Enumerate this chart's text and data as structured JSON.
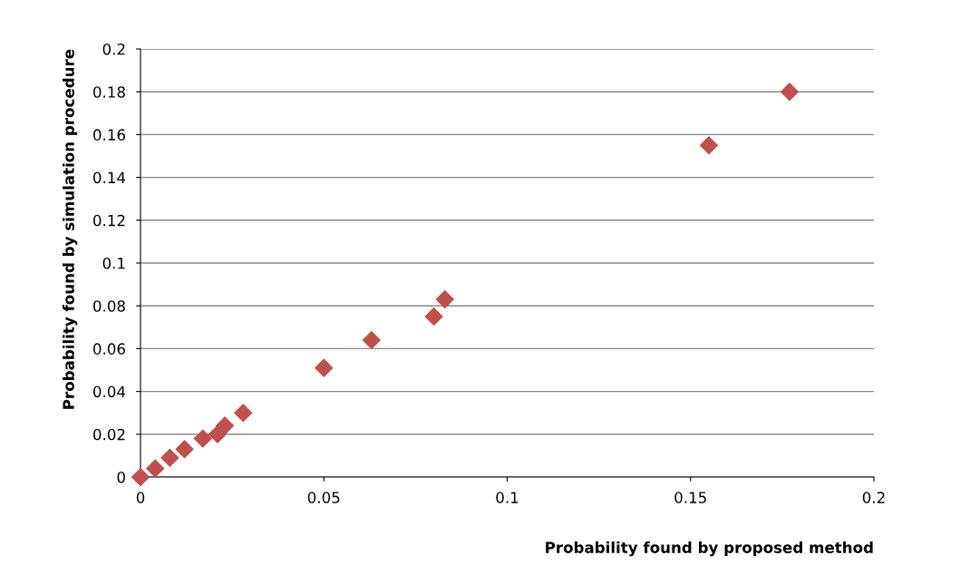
{
  "chart_data": {
    "type": "scatter",
    "xlabel": "Probability found by proposed method",
    "ylabel": "Probability found by simulation procedure",
    "x": [
      0,
      0.004,
      0.008,
      0.012,
      0.017,
      0.021,
      0.023,
      0.028,
      0.05,
      0.063,
      0.08,
      0.083,
      0.155,
      0.177
    ],
    "series": [
      {
        "color": "#c0504d",
        "values": [
          0,
          0.004,
          0.009,
          0.013,
          0.018,
          0.02,
          0.024,
          0.03,
          0.051,
          0.064,
          0.075,
          0.083,
          0.155,
          0.18
        ]
      }
    ],
    "marker": "diamond",
    "xlim": [
      0,
      0.2
    ],
    "ylim": [
      0,
      0.2
    ],
    "xticks": [
      0,
      0.05,
      0.1,
      0.15,
      0.2
    ],
    "yticks": [
      0,
      0.02,
      0.04,
      0.06,
      0.08,
      0.1,
      0.12,
      0.14,
      0.16,
      0.18,
      0.2
    ],
    "grid": "y",
    "legend": false
  }
}
